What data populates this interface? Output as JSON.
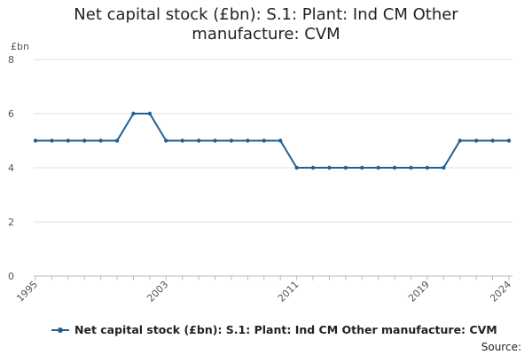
{
  "chart_data": {
    "type": "line",
    "title": "Net capital stock (£bn): S.1: Plant: Ind CM Other manufacture: CVM",
    "unit_label": "£bn",
    "x": [
      1995,
      1996,
      1997,
      1998,
      1999,
      2000,
      2001,
      2002,
      2003,
      2004,
      2005,
      2006,
      2007,
      2008,
      2009,
      2010,
      2011,
      2012,
      2013,
      2014,
      2015,
      2016,
      2017,
      2018,
      2019,
      2020,
      2021,
      2022,
      2023,
      2024
    ],
    "x_tick_labels": [
      "1995",
      "2003",
      "2011",
      "2019",
      "2024"
    ],
    "y_ticks": [
      0,
      2,
      4,
      6,
      8
    ],
    "ylim": [
      0,
      8
    ],
    "grid": true,
    "legend_position": "bottom",
    "series": [
      {
        "name": "Net capital stock (£bn): S.1: Plant: Ind CM Other manufacture: CVM",
        "color": "#206095",
        "values": [
          5,
          5,
          5,
          5,
          5,
          5,
          6,
          6,
          5,
          5,
          5,
          5,
          5,
          5,
          5,
          5,
          4,
          4,
          4,
          4,
          4,
          4,
          4,
          4,
          4,
          4,
          5,
          5,
          5,
          5
        ]
      }
    ],
    "source_label": "Source:"
  }
}
